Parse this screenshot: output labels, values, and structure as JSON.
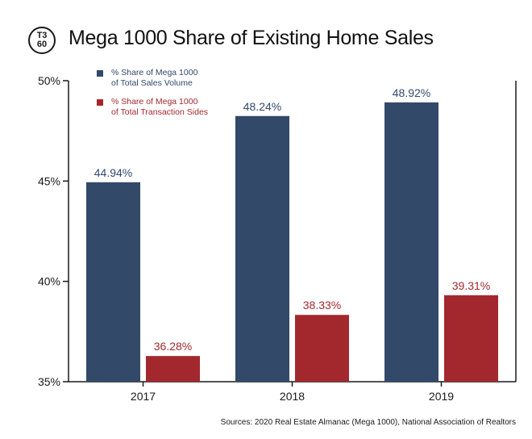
{
  "header": {
    "logo_top": "T3",
    "logo_bottom": "60",
    "title": "Mega 1000 Share of Existing Home Sales"
  },
  "legend": {
    "series1_line1": "% Share of Mega 1000",
    "series1_line2": "of Total Sales Volume",
    "series2_line1": "% Share of Mega 1000",
    "series2_line2": "of Total Transaction Sides"
  },
  "source": "Sources: 2020 Real Estate Almanac (Mega 1000), National Association of Realtors",
  "colors": {
    "series1": "#33496a",
    "series2": "#a3282d",
    "axis": "#1a1a1a"
  },
  "chart_data": {
    "type": "bar",
    "title": "Mega 1000 Share of Existing Home Sales",
    "categories": [
      "2017",
      "2018",
      "2019"
    ],
    "series": [
      {
        "name": "% Share of Mega 1000 of Total Sales Volume",
        "values": [
          44.94,
          48.24,
          48.92
        ],
        "labels": [
          "44.94%",
          "48.24%",
          "48.92%"
        ]
      },
      {
        "name": "% Share of Mega 1000 of Total Transaction Sides",
        "values": [
          36.28,
          38.33,
          39.31
        ],
        "labels": [
          "36.28%",
          "38.33%",
          "39.31%"
        ]
      }
    ],
    "y_ticks": [
      35,
      40,
      45,
      50
    ],
    "y_tick_labels": [
      "35%",
      "40%",
      "45%",
      "50%"
    ],
    "ylim": [
      35,
      50
    ],
    "grid": false,
    "legend_position": "top-left"
  }
}
